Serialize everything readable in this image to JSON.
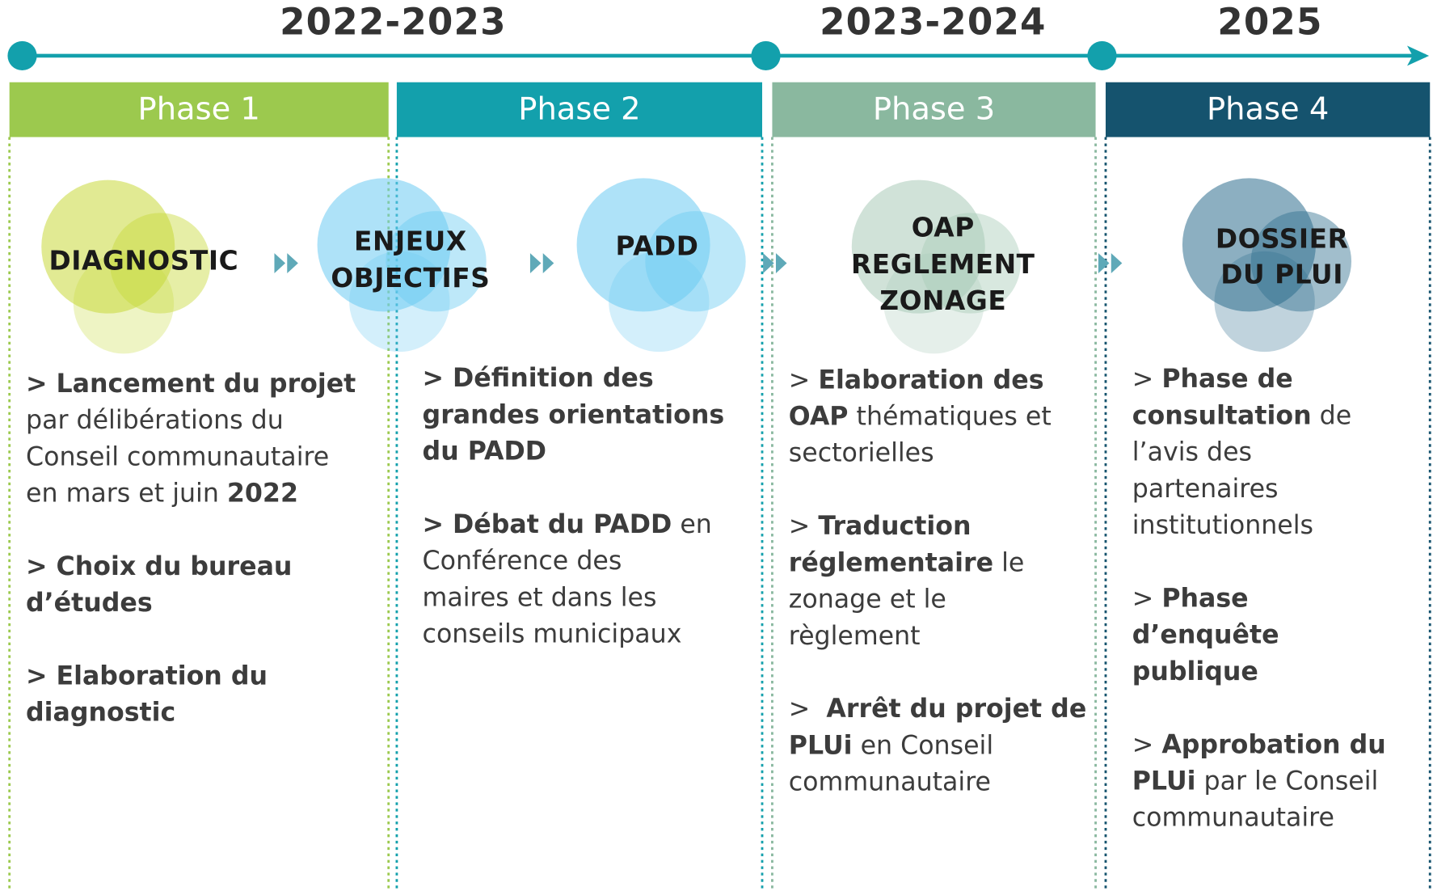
{
  "timeline": {
    "periods": [
      "2022-2023",
      "2023-2024",
      "2025"
    ],
    "color": "#13a0ac"
  },
  "phases": [
    {
      "title": "Phase 1",
      "color": "#9cc94e",
      "bubble_color": "#c8d93a",
      "bubbles": [
        [
          "DIAGNOSTIC"
        ]
      ],
      "items": [
        [
          [
            {
              "text": "> Lancement du projet",
              "bold": true
            }
          ],
          [
            {
              "text": "par délibérations du",
              "bold": false
            }
          ],
          [
            {
              "text": "Conseil communautaire",
              "bold": false
            }
          ],
          [
            {
              "text": "en mars et juin ",
              "bold": false
            },
            {
              "text": "2022",
              "bold": true
            }
          ]
        ],
        [
          [
            {
              "text": "> Choix du bureau",
              "bold": true
            }
          ],
          [
            {
              "text": "d’études",
              "bold": true
            }
          ]
        ],
        [
          [
            {
              "text": "> Elaboration du",
              "bold": true
            }
          ],
          [
            {
              "text": "diagnostic",
              "bold": true
            }
          ]
        ]
      ]
    },
    {
      "title": "Phase 2",
      "color": "#13a0ac",
      "bubble_color": "#6ccbf2",
      "bubbles": [
        [
          "ENJEUX",
          "OBJECTIFS"
        ],
        [
          "PADD"
        ]
      ],
      "items": [
        [
          [
            {
              "text": "> Définition des",
              "bold": true
            }
          ],
          [
            {
              "text": "grandes orientations",
              "bold": true
            }
          ],
          [
            {
              "text": "du PADD",
              "bold": true
            }
          ]
        ],
        [
          [
            {
              "text": "> Débat du PADD",
              "bold": true
            },
            {
              "text": " en",
              "bold": false
            }
          ],
          [
            {
              "text": "Conférence des",
              "bold": false
            }
          ],
          [
            {
              "text": "maires et dans les",
              "bold": false
            }
          ],
          [
            {
              "text": "conseils municipaux",
              "bold": false
            }
          ]
        ]
      ]
    },
    {
      "title": "Phase 3",
      "color": "#8ab89f",
      "bubble_color": "#a9cbb8",
      "bubbles": [
        [
          "OAP",
          "REGLEMENT",
          "ZONAGE"
        ]
      ],
      "items": [
        [
          [
            {
              "text": "> ",
              "bold": false
            },
            {
              "text": "Elaboration des",
              "bold": true
            }
          ],
          [
            {
              "text": "OAP",
              "bold": true
            },
            {
              "text": " thématiques et",
              "bold": false
            }
          ],
          [
            {
              "text": "sectorielles",
              "bold": false
            }
          ]
        ],
        [
          [
            {
              "text": "> ",
              "bold": false
            },
            {
              "text": "Traduction",
              "bold": true
            }
          ],
          [
            {
              "text": "réglementaire",
              "bold": true
            },
            {
              "text": " le",
              "bold": false
            }
          ],
          [
            {
              "text": "zonage et le",
              "bold": false
            }
          ],
          [
            {
              "text": "règlement",
              "bold": false
            }
          ]
        ],
        [
          [
            {
              "text": ">  ",
              "bold": false
            },
            {
              "text": "Arrêt du projet de",
              "bold": true
            }
          ],
          [
            {
              "text": "PLUi",
              "bold": true
            },
            {
              "text": " en Conseil",
              "bold": false
            }
          ],
          [
            {
              "text": "communautaire",
              "bold": false
            }
          ]
        ]
      ]
    },
    {
      "title": "Phase 4",
      "color": "#15536e",
      "bubble_color": "#2e6e8e",
      "bubbles": [
        [
          "DOSSIER",
          "DU PLUI"
        ]
      ],
      "items": [
        [
          [
            {
              "text": "> ",
              "bold": false
            },
            {
              "text": "Phase de",
              "bold": true
            }
          ],
          [
            {
              "text": "consultation",
              "bold": true
            },
            {
              "text": " de",
              "bold": false
            }
          ],
          [
            {
              "text": "l’avis des",
              "bold": false
            }
          ],
          [
            {
              "text": "partenaires",
              "bold": false
            }
          ],
          [
            {
              "text": "institutionnels",
              "bold": false
            }
          ]
        ],
        [
          [
            {
              "text": "> ",
              "bold": false
            },
            {
              "text": "Phase",
              "bold": true
            }
          ],
          [
            {
              "text": "d’enquête",
              "bold": true
            }
          ],
          [
            {
              "text": "publique",
              "bold": true
            }
          ]
        ],
        [
          [
            {
              "text": "> ",
              "bold": false
            },
            {
              "text": "Approbation du",
              "bold": true
            }
          ],
          [
            {
              "text": "PLUi",
              "bold": true
            },
            {
              "text": " par le Conseil",
              "bold": false
            }
          ],
          [
            {
              "text": "communautaire",
              "bold": false
            }
          ]
        ]
      ]
    }
  ]
}
